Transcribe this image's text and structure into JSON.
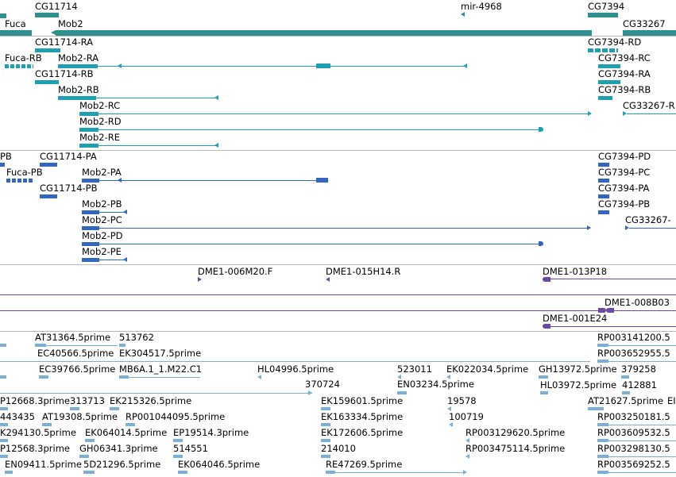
{
  "colors": {
    "gene": "#2f8f8f",
    "transcript": "#1fa0b2",
    "cds": "#3366c0",
    "bac": "#6a4aa0",
    "est": "#7ab0d8",
    "separator": "#b8b8b8"
  },
  "tracks": {
    "genes": {
      "labels": [
        "Fuca",
        "CG11714",
        "Mob2",
        "mir-4968",
        "CG7394",
        "CG33267"
      ]
    },
    "transcripts": {
      "labels": [
        "CG11714-RA",
        "Fuca-RB",
        "Mob2-RA",
        "CG11714-RB",
        "Mob2-RB",
        "Mob2-RC",
        "Mob2-RD",
        "Mob2-RE",
        "CG7394-RD",
        "CG7394-RC",
        "CG7394-RA",
        "CG7394-RB",
        "CG33267-R"
      ]
    },
    "cds": {
      "labels": [
        "PB",
        "CG11714-PA",
        "Fuca-PB",
        "Mob2-PA",
        "CG11714-PB",
        "Mob2-PB",
        "Mob2-PC",
        "Mob2-PD",
        "Mob2-PE",
        "CG7394-PD",
        "CG7394-PC",
        "CG7394-PA",
        "CG7394-PB",
        "CG33267-"
      ]
    },
    "bac": {
      "labels": [
        "DME1-006M20.F",
        "DME1-015H14.R",
        "DME1-013P18",
        "DME1-008B03",
        "DME1-001E24"
      ]
    },
    "est": {
      "labels": [
        "AT31364.5prime",
        "513762",
        "RP003141200.5",
        "EC40566.5prime",
        "EK304517.5prime",
        "RP003652955.5",
        "EC39766.5prime",
        "MB6A.1_1.M22.C1",
        "HL04996.5prime",
        "523011",
        "EK022034.5prime",
        "GH13972.5prime",
        "379258",
        "370724",
        "EN03234.5prime",
        "HL03972.5prime",
        "412881",
        "P12668.3prime",
        "313713",
        "EK215326.5prime",
        "EK159601.5prime",
        "19578",
        "AT21627.5prime",
        "EI",
        "443435",
        "AT19308.5prime",
        "RP001044095.5prime",
        "EK163334.5prime",
        "100719",
        "RP003250181.5",
        "K294130.5prime",
        "EK064014.5prime",
        "EP19514.3prime",
        "EK172606.5prime",
        "RP003129620.5prime",
        "RP003609532.5",
        "P12568.3prime",
        "GH06341.3prime",
        "514551",
        "214010",
        "RP003475114.5prime",
        "RP003298130.5",
        "EN09411.5prime",
        "5D21296.5prime",
        "EK064046.5prime",
        "RE47269.5prime",
        "RP003569252.5"
      ]
    }
  }
}
